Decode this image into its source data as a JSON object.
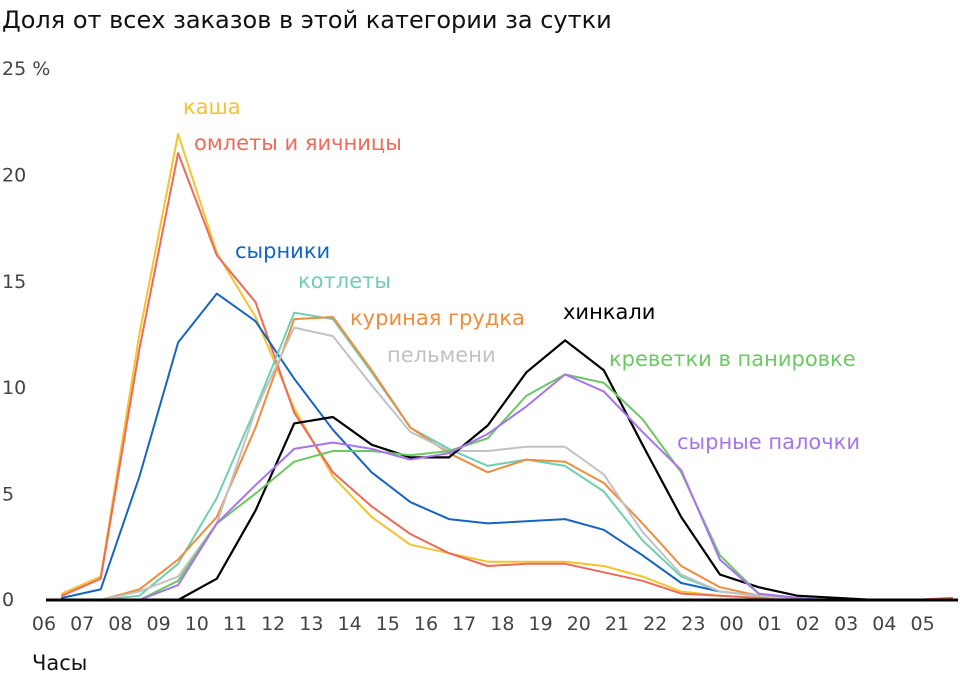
{
  "chart_data": {
    "type": "line",
    "title": "Доля от всех заказов в этой категории за сутки",
    "xlabel": "Часы",
    "ylabel": "",
    "y_unit_label": "25 %",
    "ylim": [
      0,
      25
    ],
    "y_ticks": [
      "",
      "5",
      "10",
      "15",
      "20"
    ],
    "grid": false,
    "legend": "inline labels",
    "x": [
      "06",
      "07",
      "08",
      "09",
      "10",
      "11",
      "12",
      "13",
      "14",
      "15",
      "16",
      "17",
      "18",
      "19",
      "20",
      "21",
      "22",
      "23",
      "00",
      "01",
      "02",
      "03",
      "04",
      "05"
    ],
    "series": [
      {
        "name": "каша",
        "color": "#f5c32c",
        "values": [
          0.3,
          1.1,
          12.5,
          21.9,
          16.3,
          13.3,
          9.0,
          5.8,
          3.9,
          2.6,
          2.2,
          1.8,
          1.8,
          1.8,
          1.6,
          1.1,
          0.4,
          0.2,
          0.1,
          0,
          0,
          0,
          0,
          0.1
        ]
      },
      {
        "name": "омлеты и яичницы",
        "color": "#ee6a5a",
        "values": [
          0.2,
          1.0,
          11.8,
          21.0,
          16.2,
          14.0,
          8.8,
          6.0,
          4.4,
          3.1,
          2.2,
          1.6,
          1.7,
          1.7,
          1.3,
          0.9,
          0.3,
          0.2,
          0.1,
          0,
          0,
          0,
          0,
          0.1
        ]
      },
      {
        "name": "сырники",
        "color": "#1565c0",
        "values": [
          0.1,
          0.5,
          5.8,
          12.1,
          14.4,
          13.1,
          10.4,
          8.0,
          6.0,
          4.6,
          3.8,
          3.6,
          3.7,
          3.8,
          3.3,
          2.1,
          0.8,
          0.4,
          0.2,
          0,
          0,
          0,
          0,
          0
        ]
      },
      {
        "name": "котлеты",
        "color": "#6fcfb2",
        "values": [
          0,
          0,
          0.2,
          1.7,
          4.8,
          9.0,
          13.5,
          13.2,
          10.7,
          8.1,
          7.1,
          6.3,
          6.6,
          6.3,
          5.1,
          2.8,
          1.1,
          0.4,
          0.2,
          0.1,
          0,
          0,
          0,
          0
        ]
      },
      {
        "name": "куриная грудка",
        "color": "#f08c3e",
        "values": [
          0,
          0,
          0.5,
          1.9,
          3.9,
          8.1,
          13.2,
          13.3,
          10.8,
          8.1,
          6.9,
          6.0,
          6.6,
          6.5,
          5.5,
          3.6,
          1.6,
          0.6,
          0.2,
          0.1,
          0,
          0,
          0,
          0
        ]
      },
      {
        "name": "пельмени",
        "color": "#c2c2c2",
        "values": [
          0,
          0,
          0.4,
          1.1,
          3.6,
          8.9,
          12.8,
          12.4,
          10.1,
          7.9,
          7.0,
          7.0,
          7.2,
          7.2,
          5.9,
          3.2,
          1.2,
          0.4,
          0.2,
          0,
          0,
          0,
          0,
          0
        ]
      },
      {
        "name": "хинкали",
        "color": "#000000",
        "values": [
          0,
          0,
          0,
          0,
          1.0,
          4.2,
          8.3,
          8.6,
          7.3,
          6.7,
          6.7,
          8.2,
          10.7,
          12.2,
          10.8,
          7.3,
          3.9,
          1.2,
          0.6,
          0.2,
          0.1,
          0,
          0,
          0
        ]
      },
      {
        "name": "креветки в панировке",
        "color": "#6cc862",
        "values": [
          0,
          0,
          0,
          0.9,
          3.6,
          5.0,
          6.5,
          7.0,
          7.0,
          6.8,
          7.0,
          7.6,
          9.6,
          10.6,
          10.2,
          8.5,
          6.0,
          2.1,
          0.3,
          0.1,
          0,
          0,
          0,
          0
        ]
      },
      {
        "name": "сырные палочки",
        "color": "#a774ea",
        "values": [
          0,
          0,
          0,
          0.7,
          3.6,
          5.4,
          7.1,
          7.4,
          7.1,
          6.6,
          6.9,
          7.8,
          9.1,
          10.6,
          9.8,
          7.9,
          6.1,
          1.9,
          0.3,
          0.1,
          0,
          0,
          0,
          0
        ]
      }
    ]
  }
}
